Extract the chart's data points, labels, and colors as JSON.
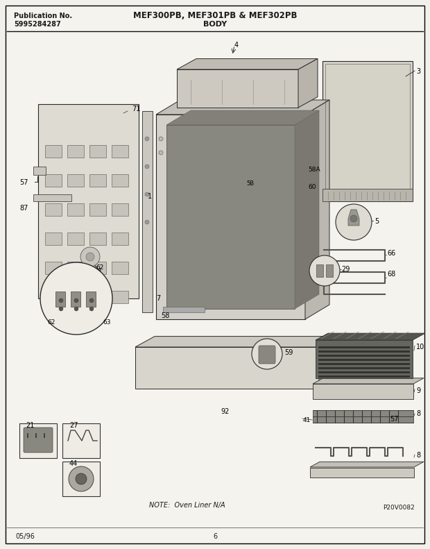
{
  "bg_color": "#f2f0eb",
  "page_bg": "#f5f3ee",
  "pub_no_label": "Publication No.",
  "pub_no_value": "5995284287",
  "model_line": "MEF300PB, MEF301PB & MEF302PB",
  "section_title": "BODY",
  "note_text": "NOTE:  Oven Liner N/A",
  "part_code": "P20V0082",
  "date_code": "05/96",
  "page_no": "6",
  "fig_width": 6.2,
  "fig_height": 7.91,
  "dpi": 100
}
